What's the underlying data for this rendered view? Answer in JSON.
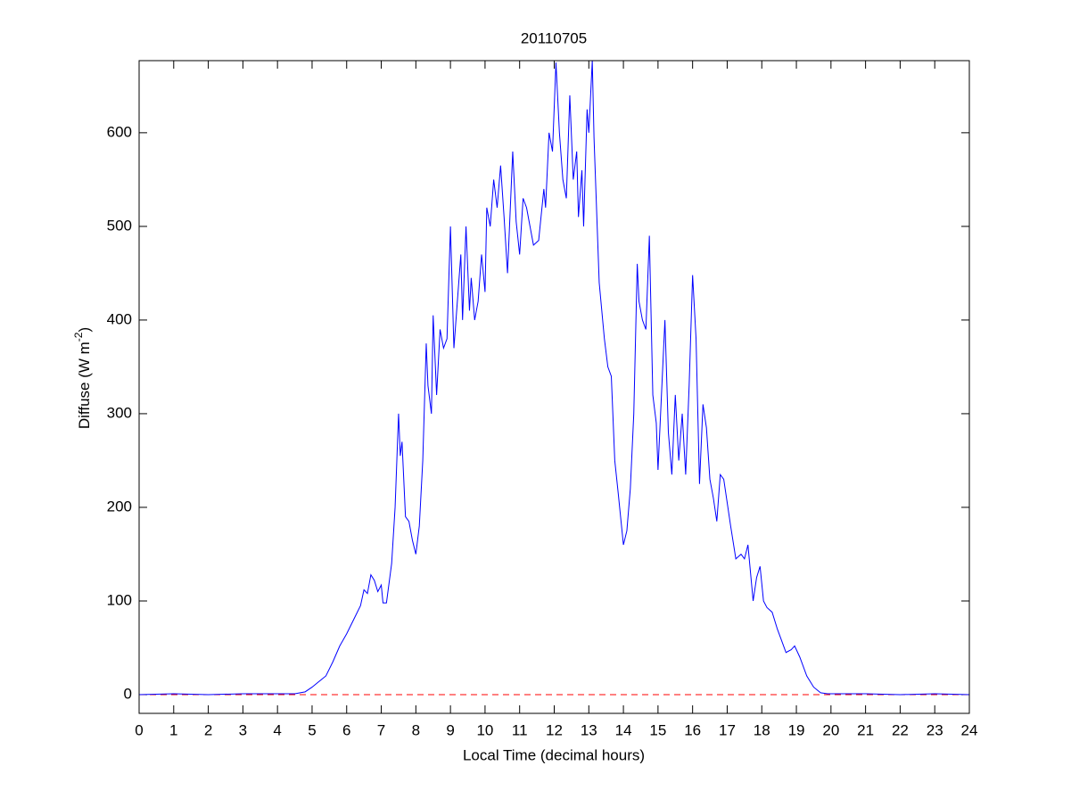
{
  "chart_data": {
    "type": "line",
    "title": "20110705",
    "xlabel": "Local Time (decimal hours)",
    "ylabel": {
      "text": "Diffuse (W m",
      "superscript": "-2",
      "suffix": ")"
    },
    "x": [
      0,
      1,
      2,
      3,
      4,
      4.5,
      4.8,
      5.0,
      5.2,
      5.4,
      5.6,
      5.8,
      6.0,
      6.2,
      6.4,
      6.5,
      6.6,
      6.7,
      6.8,
      6.9,
      7.0,
      7.05,
      7.15,
      7.3,
      7.4,
      7.5,
      7.55,
      7.6,
      7.7,
      7.8,
      7.9,
      8.0,
      8.1,
      8.2,
      8.3,
      8.35,
      8.45,
      8.5,
      8.6,
      8.7,
      8.8,
      8.9,
      9.0,
      9.1,
      9.2,
      9.3,
      9.35,
      9.45,
      9.55,
      9.6,
      9.7,
      9.8,
      9.9,
      10.0,
      10.05,
      10.15,
      10.25,
      10.35,
      10.45,
      10.55,
      10.65,
      10.8,
      10.9,
      11.0,
      11.1,
      11.2,
      11.3,
      11.4,
      11.55,
      11.7,
      11.75,
      11.85,
      11.95,
      12.05,
      12.15,
      12.25,
      12.35,
      12.45,
      12.55,
      12.65,
      12.7,
      12.8,
      12.85,
      12.95,
      13.0,
      13.1,
      13.15,
      13.3,
      13.45,
      13.55,
      13.65,
      13.75,
      13.85,
      14.0,
      14.1,
      14.2,
      14.3,
      14.4,
      14.45,
      14.55,
      14.65,
      14.75,
      14.85,
      14.95,
      15.0,
      15.1,
      15.2,
      15.3,
      15.4,
      15.5,
      15.6,
      15.7,
      15.8,
      15.9,
      16.0,
      16.1,
      16.2,
      16.3,
      16.4,
      16.5,
      16.6,
      16.7,
      16.8,
      16.9,
      17.0,
      17.1,
      17.25,
      17.4,
      17.5,
      17.6,
      17.7,
      17.75,
      17.85,
      17.95,
      18.05,
      18.15,
      18.3,
      18.45,
      18.55,
      18.7,
      18.85,
      18.95,
      19.1,
      19.3,
      19.5,
      19.7,
      19.9,
      20.5,
      21,
      22,
      23,
      24
    ],
    "series": [
      {
        "color": "#0000ff",
        "values": [
          0,
          1,
          0,
          1,
          1,
          1,
          3,
          8,
          14,
          20,
          35,
          52,
          65,
          80,
          95,
          112,
          108,
          128,
          122,
          110,
          117,
          98,
          98,
          140,
          200,
          300,
          255,
          270,
          190,
          185,
          165,
          150,
          180,
          250,
          375,
          330,
          300,
          405,
          320,
          390,
          370,
          380,
          500,
          370,
          420,
          470,
          400,
          500,
          410,
          445,
          400,
          420,
          470,
          430,
          520,
          500,
          550,
          520,
          565,
          510,
          450,
          580,
          505,
          470,
          530,
          520,
          500,
          480,
          485,
          540,
          520,
          600,
          580,
          675,
          600,
          550,
          530,
          640,
          550,
          580,
          510,
          560,
          500,
          625,
          600,
          677,
          595,
          440,
          380,
          350,
          340,
          250,
          215,
          160,
          175,
          220,
          300,
          460,
          420,
          400,
          390,
          490,
          320,
          290,
          240,
          320,
          400,
          280,
          235,
          320,
          250,
          300,
          235,
          330,
          448,
          380,
          225,
          310,
          285,
          230,
          210,
          185,
          235,
          230,
          205,
          180,
          145,
          150,
          145,
          160,
          120,
          100,
          125,
          137,
          100,
          93,
          88,
          70,
          60,
          45,
          48,
          52,
          40,
          20,
          8,
          2,
          1,
          1,
          1,
          0,
          1,
          0
        ]
      }
    ],
    "hline": {
      "value": 0,
      "color": "#ff0000",
      "dashed": true
    },
    "xlim": [
      0,
      24
    ],
    "ylim": [
      -20,
      677
    ],
    "xticks": [
      0,
      1,
      2,
      3,
      4,
      5,
      6,
      7,
      8,
      9,
      10,
      11,
      12,
      13,
      14,
      15,
      16,
      17,
      18,
      19,
      20,
      21,
      22,
      23,
      24
    ],
    "yticks": [
      0,
      100,
      200,
      300,
      400,
      500,
      600
    ]
  }
}
